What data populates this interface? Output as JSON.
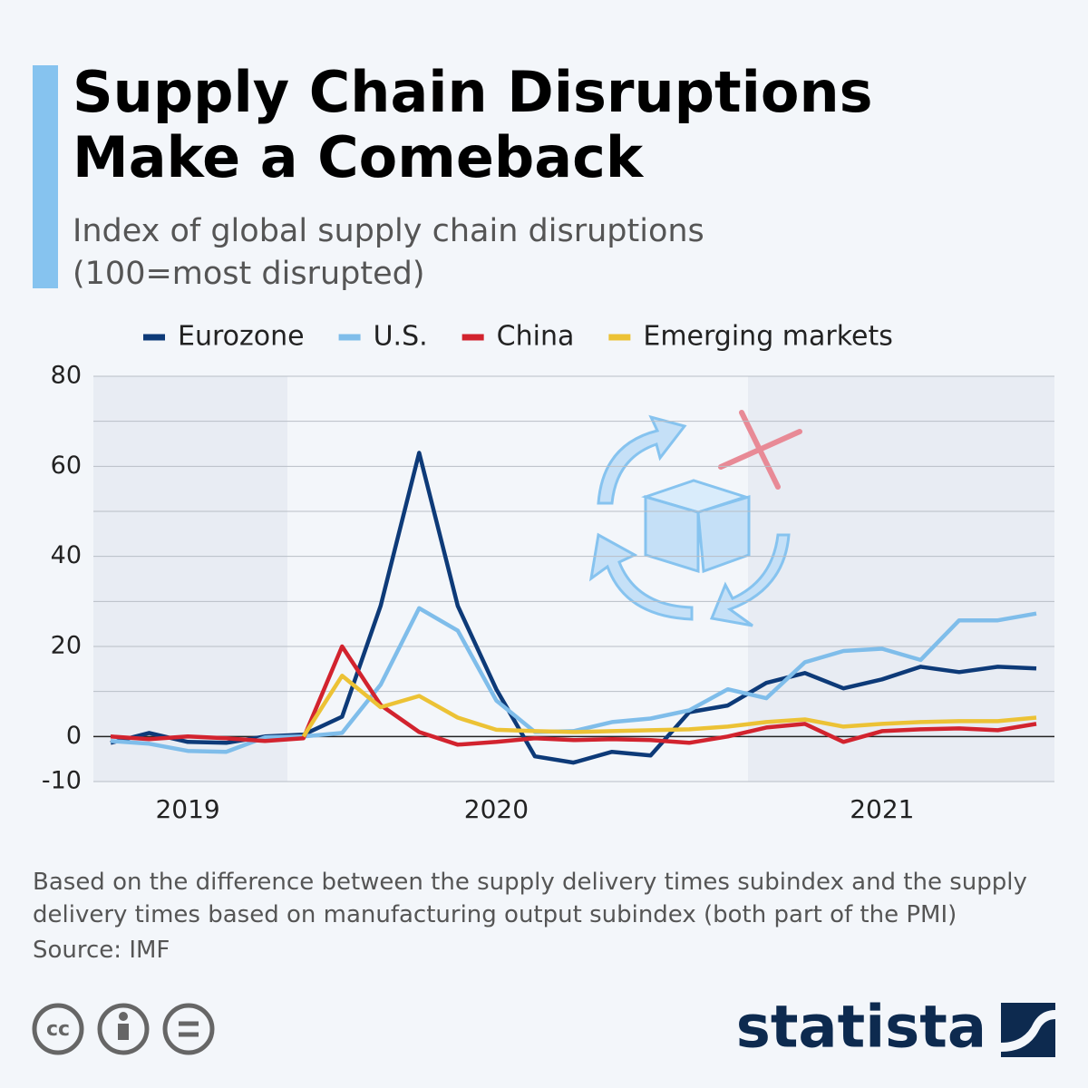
{
  "chart_data": {
    "type": "line",
    "title": "Supply Chain Disruptions Make a Comeback",
    "subtitle": "Index of global supply chain disruptions (100=most disrupted)",
    "categories": [
      null,
      null,
      "2019",
      null,
      null,
      null,
      null,
      null,
      null,
      null,
      "2020",
      null,
      null,
      null,
      null,
      null,
      null,
      null,
      null,
      null,
      "2021",
      null,
      null,
      null,
      null
    ],
    "series": [
      {
        "name": "Eurozone",
        "color": "#0d3a78",
        "values": [
          -1.4,
          0.8,
          -1.2,
          -1.4,
          0,
          0.4,
          4.4,
          29,
          63,
          29,
          10.5,
          -4.4,
          -5.8,
          -3.4,
          -4.2,
          5.4,
          6.9,
          11.9,
          14.1,
          10.7,
          12.7,
          15.5,
          14.3,
          15.5,
          15.1
        ]
      },
      {
        "name": "U.S.",
        "color": "#7fbdea",
        "values": [
          -1,
          -1.6,
          -3.2,
          -3.4,
          -0.2,
          0,
          0.8,
          11.5,
          28.5,
          23.5,
          8,
          1,
          1.2,
          3.2,
          4,
          5.8,
          10.5,
          8.5,
          16.5,
          19,
          19.5,
          17,
          25.8,
          25.8,
          27.3
        ]
      },
      {
        "name": "China",
        "color": "#d2232e",
        "values": [
          0,
          -0.6,
          0,
          -0.4,
          -1,
          -0.4,
          20,
          7,
          1,
          -1.8,
          -1.2,
          -0.4,
          -0.8,
          -0.6,
          -0.8,
          -1.4,
          0,
          2,
          2.8,
          -1.2,
          1.2,
          1.6,
          1.8,
          1.4,
          2.8
        ]
      },
      {
        "name": "Emerging markets",
        "color": "#ecc235",
        "values": [
          null,
          null,
          null,
          null,
          null,
          0,
          13.5,
          6.5,
          9,
          4.2,
          1.5,
          1.2,
          1,
          1.2,
          1.4,
          1.6,
          2.2,
          3.2,
          3.8,
          2.2,
          2.8,
          3.2,
          3.4,
          3.4,
          4.2
        ]
      }
    ],
    "ylim": [
      -10,
      80
    ],
    "yticks": [
      -10,
      0,
      20,
      40,
      60,
      80
    ],
    "minor_yticks": [
      10,
      30,
      50,
      70
    ],
    "grid": true,
    "legend": "top",
    "note": "Based on the difference between the supply delivery times subindex and the supply delivery times based on manufacturing output subindex (both part of the PMI)",
    "source": "Source: IMF",
    "license": "cc",
    "brand": "statista"
  }
}
